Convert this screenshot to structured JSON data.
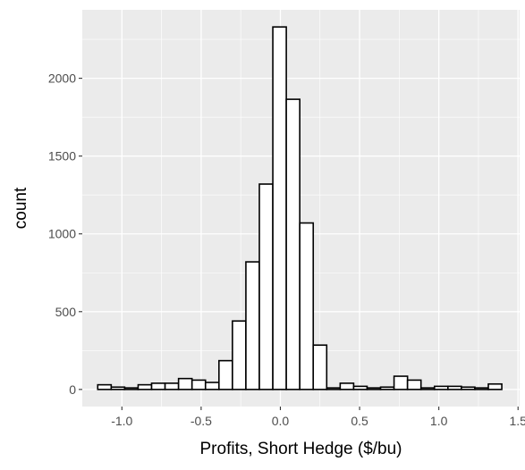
{
  "chart_data": {
    "type": "bar",
    "subtype": "histogram",
    "title": "",
    "xlabel": "Profits, Short Hedge ($/bu)",
    "ylabel": "count",
    "xlim": [
      -1.25,
      1.51
    ],
    "ylim": [
      -110,
      2440
    ],
    "x_ticks": [
      -1.0,
      -0.5,
      0.0,
      0.5,
      1.0,
      1.5
    ],
    "x_tick_labels": [
      "-1.0",
      "-0.5",
      "0.0",
      "0.5",
      "1.0",
      "1.5"
    ],
    "y_ticks": [
      0,
      500,
      1000,
      1500,
      2000
    ],
    "y_tick_labels": [
      "0",
      "500",
      "1000",
      "1500",
      "2000"
    ],
    "bin_width": 0.085,
    "bin_centers": [
      -1.11,
      -1.025,
      -0.94,
      -0.855,
      -0.77,
      -0.685,
      -0.6,
      -0.515,
      -0.43,
      -0.345,
      -0.26,
      -0.175,
      -0.09,
      -0.005,
      0.08,
      0.165,
      0.25,
      0.335,
      0.42,
      0.505,
      0.59,
      0.675,
      0.76,
      0.845,
      0.93,
      1.015,
      1.1,
      1.185,
      1.27,
      1.355
    ],
    "counts": [
      30,
      15,
      10,
      30,
      40,
      40,
      70,
      60,
      45,
      185,
      440,
      820,
      1320,
      2330,
      1865,
      1070,
      285,
      10,
      40,
      20,
      10,
      15,
      85,
      60,
      10,
      20,
      20,
      15,
      10,
      35
    ],
    "fill": "#ffffff",
    "stroke": "#000000",
    "panel_background": "#ebebeb",
    "grid": true,
    "grid_color": "#ffffff"
  }
}
